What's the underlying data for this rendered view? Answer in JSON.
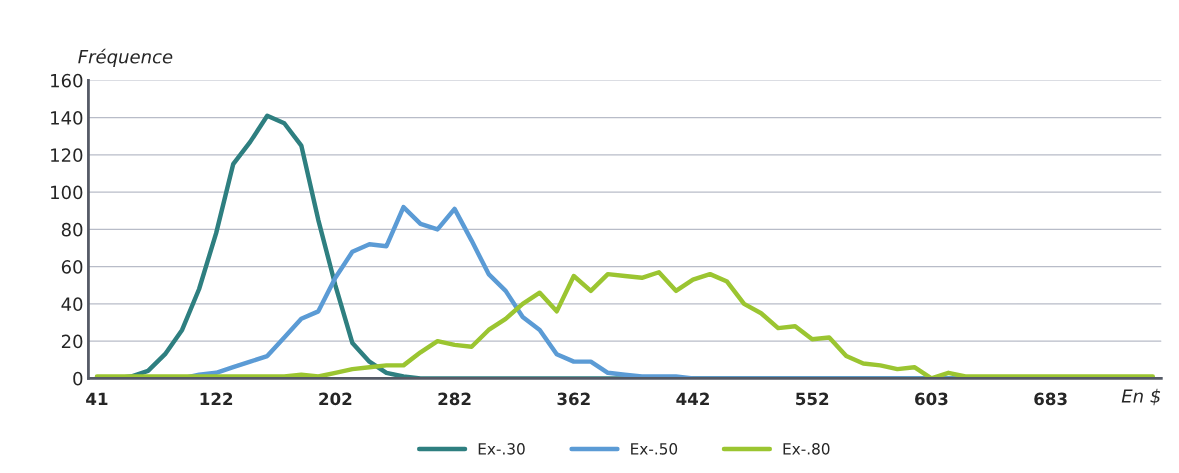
{
  "chart_data": {
    "type": "line",
    "xlabel": "En $",
    "ylabel": "Fréquence",
    "categories": [
      "41",
      null,
      null,
      null,
      null,
      null,
      null,
      "122",
      null,
      null,
      null,
      null,
      null,
      null,
      "202",
      null,
      null,
      null,
      null,
      null,
      null,
      "282",
      null,
      null,
      null,
      null,
      null,
      null,
      "362",
      null,
      null,
      null,
      null,
      null,
      null,
      "442",
      null,
      null,
      null,
      null,
      null,
      null,
      "552",
      null,
      null,
      null,
      null,
      null,
      null,
      "603",
      null,
      null,
      null,
      null,
      null,
      null,
      "683",
      null,
      null,
      null,
      null,
      null,
      null
    ],
    "series": [
      {
        "name": "Ex-.30",
        "color": "#2e7f80",
        "values": [
          0,
          0,
          1,
          4,
          13,
          26,
          48,
          78,
          115,
          127,
          141,
          137,
          125,
          85,
          50,
          19,
          9,
          3,
          1,
          0,
          0,
          0,
          0,
          0,
          0,
          0,
          0,
          0,
          0,
          0,
          0,
          0,
          0,
          0,
          0,
          0,
          0,
          0,
          0,
          0,
          0,
          0,
          0,
          0,
          0,
          0,
          0,
          0,
          0,
          0,
          0,
          0,
          0,
          0,
          0,
          0,
          0,
          0,
          0,
          0,
          0,
          0,
          0
        ]
      },
      {
        "name": "Ex-.50",
        "color": "#5b9bd5",
        "values": [
          null,
          null,
          null,
          null,
          0,
          0,
          2,
          3,
          6,
          9,
          12,
          22,
          32,
          36,
          54,
          68,
          72,
          71,
          92,
          83,
          80,
          91,
          74,
          56,
          47,
          33,
          26,
          13,
          9,
          9,
          3,
          2,
          1,
          1,
          1,
          0,
          0,
          0,
          0,
          0,
          0,
          0,
          0,
          0,
          0,
          0,
          0,
          0,
          0,
          0,
          0,
          0,
          0,
          null,
          null,
          null,
          null,
          null,
          null,
          null,
          null,
          null,
          null
        ]
      },
      {
        "name": "Ex-.80",
        "color": "#9bc531",
        "values": [
          1,
          1,
          1,
          1,
          1,
          1,
          1,
          1,
          1,
          1,
          1,
          1,
          2,
          1,
          3,
          5,
          6,
          7,
          7,
          14,
          20,
          18,
          17,
          26,
          32,
          40,
          46,
          36,
          55,
          47,
          56,
          55,
          54,
          57,
          47,
          53,
          56,
          52,
          40,
          35,
          27,
          28,
          21,
          22,
          12,
          8,
          7,
          5,
          6,
          0,
          3,
          1,
          1,
          1,
          1,
          1,
          1,
          1,
          1,
          1,
          1,
          1,
          1
        ]
      }
    ],
    "ylim": [
      0,
      160
    ],
    "yticks": [
      0,
      20,
      40,
      60,
      80,
      100,
      120,
      140,
      160
    ],
    "grid": "y",
    "legend": "bottom",
    "marker": "none",
    "line_style": "solid"
  }
}
